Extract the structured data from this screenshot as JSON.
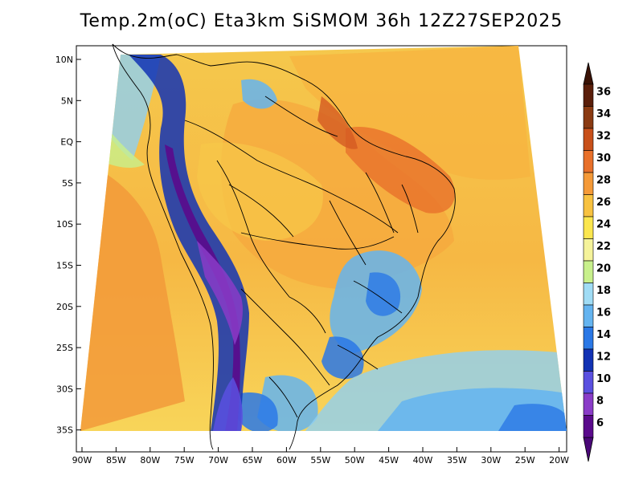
{
  "title": "Temp.2m(oC) Eta3km SiSMOM 36h 12Z27SEP2025",
  "latitude_labels": [
    "10N",
    "5N",
    "EQ",
    "5S",
    "10S",
    "15S",
    "20S",
    "25S",
    "30S",
    "35S"
  ],
  "longitude_labels": [
    "90W",
    "85W",
    "80W",
    "75W",
    "70W",
    "65W",
    "60W",
    "55W",
    "50W",
    "45W",
    "40W",
    "35W",
    "30W",
    "25W",
    "20W"
  ],
  "colorbar": {
    "labels": [
      "36",
      "34",
      "32",
      "30",
      "28",
      "26",
      "24",
      "22",
      "20",
      "18",
      "16",
      "14",
      "12",
      "10",
      "8",
      "6"
    ],
    "colors": [
      "#5a1e0a",
      "#8a3a12",
      "#c8501a",
      "#e8702a",
      "#f59a38",
      "#f8c240",
      "#fbe64e",
      "#f5f39a",
      "#c8f08c",
      "#a0dcf5",
      "#64b4f0",
      "#2a78e6",
      "#1232b4",
      "#5a50e0",
      "#8a3cc8",
      "#5a0a8c"
    ]
  }
}
